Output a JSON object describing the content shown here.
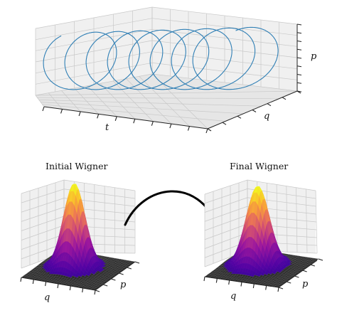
{
  "top_plot": {
    "x_label": "t",
    "y_label": "q",
    "z_label": "p"
  },
  "left_plot": {
    "title": "Initial Wigner",
    "x_label": "q",
    "y_label": "p"
  },
  "right_plot": {
    "title": "Final Wigner",
    "x_label": "q",
    "y_label": "p"
  },
  "colors": {
    "helix_line": "#2f7fb5",
    "colormap": "plasma"
  },
  "chart_data": [
    {
      "type": "line3d",
      "description_ref": "top_plot",
      "series": [
        {
          "turns": 8,
          "shape": "helix along t"
        }
      ]
    },
    {
      "type": "surface3d",
      "description_ref": "left_plot",
      "surface": "gaussian peak"
    },
    {
      "type": "surface3d",
      "description_ref": "right_plot",
      "surface": "gaussian peak"
    }
  ]
}
